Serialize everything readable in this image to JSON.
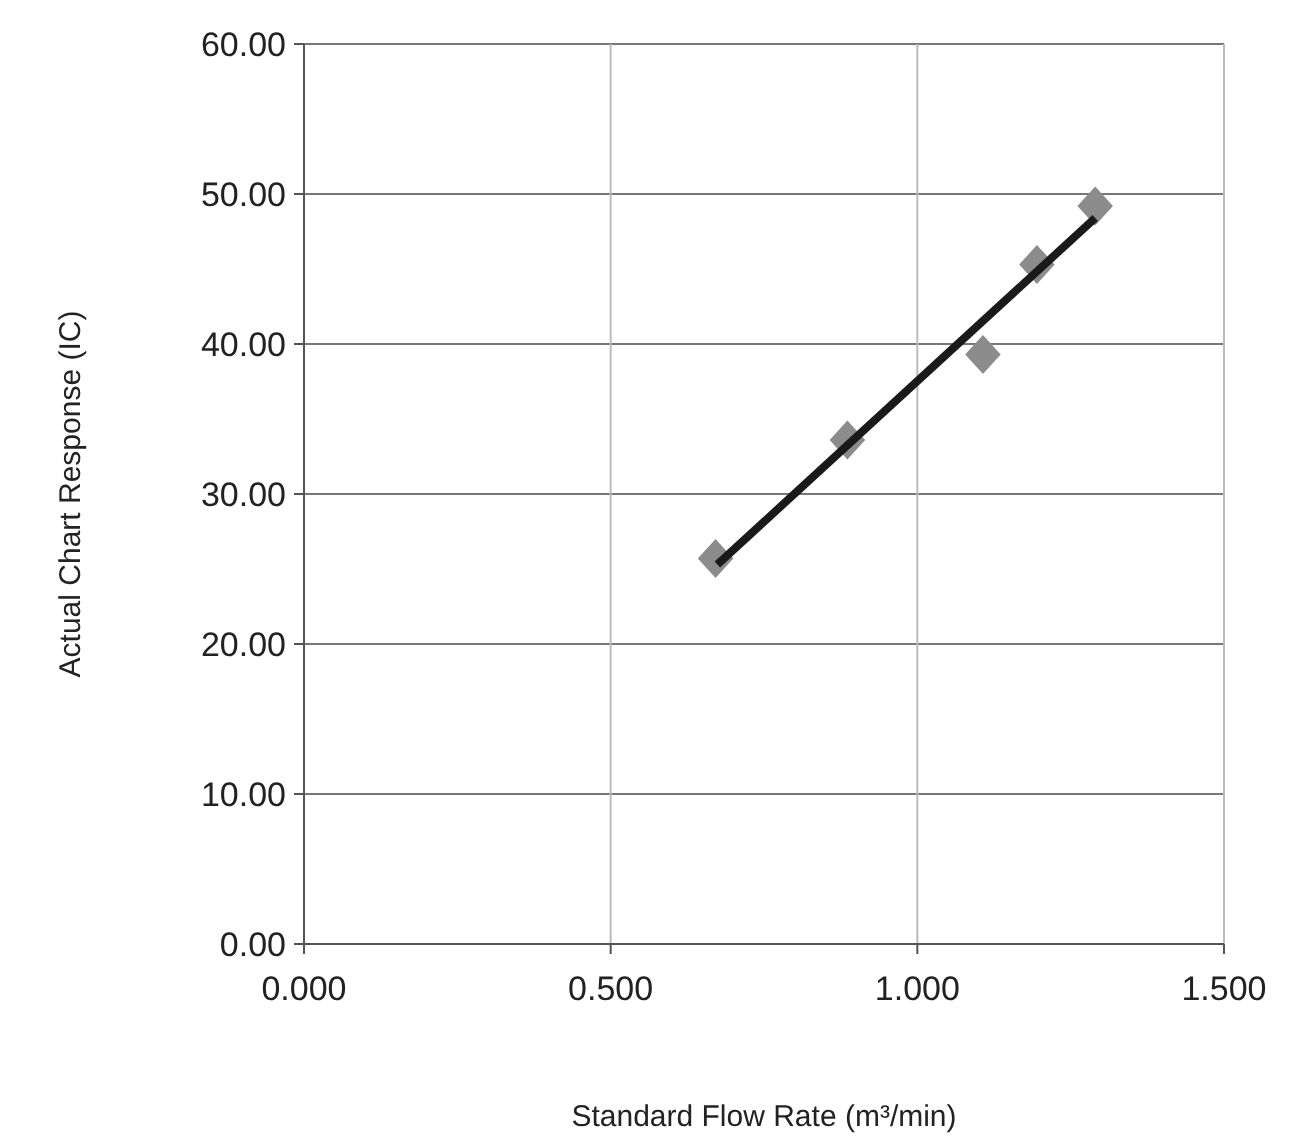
{
  "chart_data": {
    "type": "scatter",
    "xlabel": "Standard Flow Rate (m³/min)",
    "ylabel": "Actual Chart Response (IC)",
    "xlim": [
      0,
      1.5
    ],
    "xticks": [
      {
        "value": 0,
        "label": "0.000"
      },
      {
        "value": 0.5,
        "label": "0.500"
      },
      {
        "value": 1,
        "label": "1.000"
      },
      {
        "value": 1.5,
        "label": "1.500"
      }
    ],
    "ylim": [
      0,
      60
    ],
    "yticks": [
      {
        "value": 0,
        "label": "0.00"
      },
      {
        "value": 10,
        "label": "10.00"
      },
      {
        "value": 20,
        "label": "20.00"
      },
      {
        "value": 30,
        "label": "30.00"
      },
      {
        "value": 40,
        "label": "40.00"
      },
      {
        "value": 50,
        "label": "50.00"
      },
      {
        "value": 60,
        "label": "60.00"
      }
    ],
    "grid": true,
    "series": [
      {
        "color": "#8c8c8c",
        "marker": "diamond",
        "x": [
          0.671,
          0.886,
          1.107,
          1.195,
          1.29
        ],
        "values": [
          25.7,
          33.6,
          39.3,
          45.3,
          49.2
        ]
      },
      {
        "type": "line",
        "color": "#1a1a1a",
        "marker": "none",
        "line_style": "solid",
        "x": [
          0.674,
          1.29
        ],
        "values": [
          25.3,
          48.4
        ]
      }
    ]
  }
}
